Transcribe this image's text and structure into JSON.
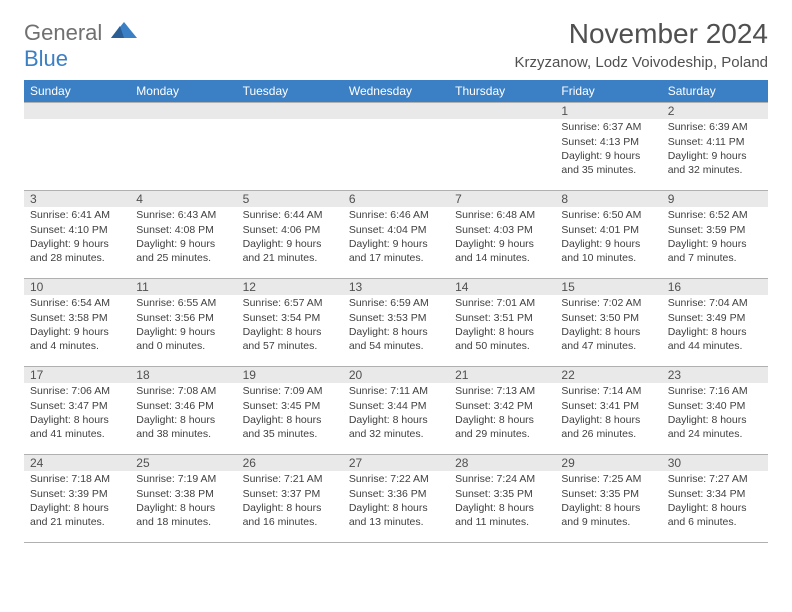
{
  "brand": {
    "part1": "General",
    "part2": "Blue"
  },
  "title": "November 2024",
  "location": "Krzyzanow, Lodz Voivodeship, Poland",
  "colors": {
    "header_bg": "#3b7fc4",
    "header_fg": "#ffffff",
    "strip_bg": "#e9e9e9",
    "text": "#505050",
    "body_text": "#404040",
    "rule": "#b0b0b0"
  },
  "day_headers": [
    "Sunday",
    "Monday",
    "Tuesday",
    "Wednesday",
    "Thursday",
    "Friday",
    "Saturday"
  ],
  "weeks": [
    [
      {
        "n": "",
        "sr": "",
        "ss": "",
        "dl": ""
      },
      {
        "n": "",
        "sr": "",
        "ss": "",
        "dl": ""
      },
      {
        "n": "",
        "sr": "",
        "ss": "",
        "dl": ""
      },
      {
        "n": "",
        "sr": "",
        "ss": "",
        "dl": ""
      },
      {
        "n": "",
        "sr": "",
        "ss": "",
        "dl": ""
      },
      {
        "n": "1",
        "sr": "Sunrise: 6:37 AM",
        "ss": "Sunset: 4:13 PM",
        "dl": "Daylight: 9 hours and 35 minutes."
      },
      {
        "n": "2",
        "sr": "Sunrise: 6:39 AM",
        "ss": "Sunset: 4:11 PM",
        "dl": "Daylight: 9 hours and 32 minutes."
      }
    ],
    [
      {
        "n": "3",
        "sr": "Sunrise: 6:41 AM",
        "ss": "Sunset: 4:10 PM",
        "dl": "Daylight: 9 hours and 28 minutes."
      },
      {
        "n": "4",
        "sr": "Sunrise: 6:43 AM",
        "ss": "Sunset: 4:08 PM",
        "dl": "Daylight: 9 hours and 25 minutes."
      },
      {
        "n": "5",
        "sr": "Sunrise: 6:44 AM",
        "ss": "Sunset: 4:06 PM",
        "dl": "Daylight: 9 hours and 21 minutes."
      },
      {
        "n": "6",
        "sr": "Sunrise: 6:46 AM",
        "ss": "Sunset: 4:04 PM",
        "dl": "Daylight: 9 hours and 17 minutes."
      },
      {
        "n": "7",
        "sr": "Sunrise: 6:48 AM",
        "ss": "Sunset: 4:03 PM",
        "dl": "Daylight: 9 hours and 14 minutes."
      },
      {
        "n": "8",
        "sr": "Sunrise: 6:50 AM",
        "ss": "Sunset: 4:01 PM",
        "dl": "Daylight: 9 hours and 10 minutes."
      },
      {
        "n": "9",
        "sr": "Sunrise: 6:52 AM",
        "ss": "Sunset: 3:59 PM",
        "dl": "Daylight: 9 hours and 7 minutes."
      }
    ],
    [
      {
        "n": "10",
        "sr": "Sunrise: 6:54 AM",
        "ss": "Sunset: 3:58 PM",
        "dl": "Daylight: 9 hours and 4 minutes."
      },
      {
        "n": "11",
        "sr": "Sunrise: 6:55 AM",
        "ss": "Sunset: 3:56 PM",
        "dl": "Daylight: 9 hours and 0 minutes."
      },
      {
        "n": "12",
        "sr": "Sunrise: 6:57 AM",
        "ss": "Sunset: 3:54 PM",
        "dl": "Daylight: 8 hours and 57 minutes."
      },
      {
        "n": "13",
        "sr": "Sunrise: 6:59 AM",
        "ss": "Sunset: 3:53 PM",
        "dl": "Daylight: 8 hours and 54 minutes."
      },
      {
        "n": "14",
        "sr": "Sunrise: 7:01 AM",
        "ss": "Sunset: 3:51 PM",
        "dl": "Daylight: 8 hours and 50 minutes."
      },
      {
        "n": "15",
        "sr": "Sunrise: 7:02 AM",
        "ss": "Sunset: 3:50 PM",
        "dl": "Daylight: 8 hours and 47 minutes."
      },
      {
        "n": "16",
        "sr": "Sunrise: 7:04 AM",
        "ss": "Sunset: 3:49 PM",
        "dl": "Daylight: 8 hours and 44 minutes."
      }
    ],
    [
      {
        "n": "17",
        "sr": "Sunrise: 7:06 AM",
        "ss": "Sunset: 3:47 PM",
        "dl": "Daylight: 8 hours and 41 minutes."
      },
      {
        "n": "18",
        "sr": "Sunrise: 7:08 AM",
        "ss": "Sunset: 3:46 PM",
        "dl": "Daylight: 8 hours and 38 minutes."
      },
      {
        "n": "19",
        "sr": "Sunrise: 7:09 AM",
        "ss": "Sunset: 3:45 PM",
        "dl": "Daylight: 8 hours and 35 minutes."
      },
      {
        "n": "20",
        "sr": "Sunrise: 7:11 AM",
        "ss": "Sunset: 3:44 PM",
        "dl": "Daylight: 8 hours and 32 minutes."
      },
      {
        "n": "21",
        "sr": "Sunrise: 7:13 AM",
        "ss": "Sunset: 3:42 PM",
        "dl": "Daylight: 8 hours and 29 minutes."
      },
      {
        "n": "22",
        "sr": "Sunrise: 7:14 AM",
        "ss": "Sunset: 3:41 PM",
        "dl": "Daylight: 8 hours and 26 minutes."
      },
      {
        "n": "23",
        "sr": "Sunrise: 7:16 AM",
        "ss": "Sunset: 3:40 PM",
        "dl": "Daylight: 8 hours and 24 minutes."
      }
    ],
    [
      {
        "n": "24",
        "sr": "Sunrise: 7:18 AM",
        "ss": "Sunset: 3:39 PM",
        "dl": "Daylight: 8 hours and 21 minutes."
      },
      {
        "n": "25",
        "sr": "Sunrise: 7:19 AM",
        "ss": "Sunset: 3:38 PM",
        "dl": "Daylight: 8 hours and 18 minutes."
      },
      {
        "n": "26",
        "sr": "Sunrise: 7:21 AM",
        "ss": "Sunset: 3:37 PM",
        "dl": "Daylight: 8 hours and 16 minutes."
      },
      {
        "n": "27",
        "sr": "Sunrise: 7:22 AM",
        "ss": "Sunset: 3:36 PM",
        "dl": "Daylight: 8 hours and 13 minutes."
      },
      {
        "n": "28",
        "sr": "Sunrise: 7:24 AM",
        "ss": "Sunset: 3:35 PM",
        "dl": "Daylight: 8 hours and 11 minutes."
      },
      {
        "n": "29",
        "sr": "Sunrise: 7:25 AM",
        "ss": "Sunset: 3:35 PM",
        "dl": "Daylight: 8 hours and 9 minutes."
      },
      {
        "n": "30",
        "sr": "Sunrise: 7:27 AM",
        "ss": "Sunset: 3:34 PM",
        "dl": "Daylight: 8 hours and 6 minutes."
      }
    ]
  ]
}
